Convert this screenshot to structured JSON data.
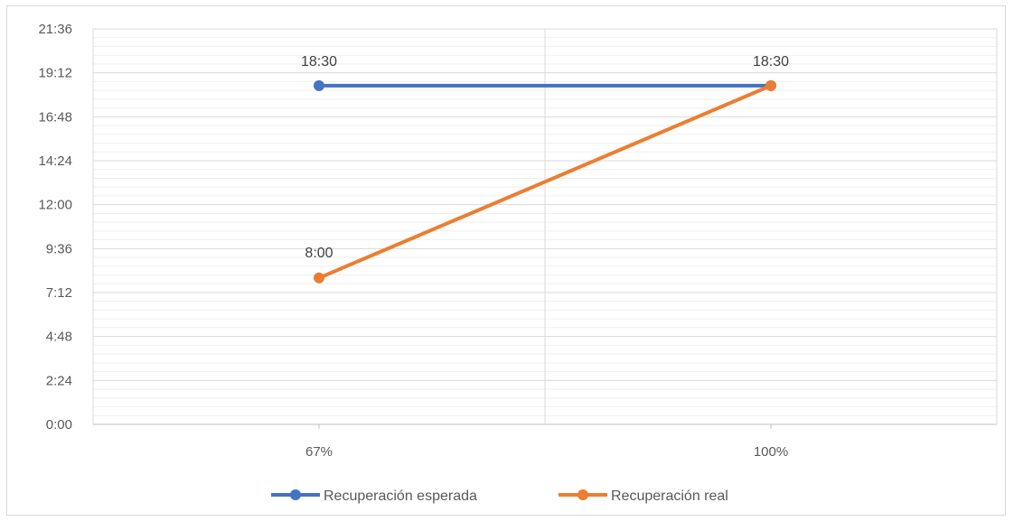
{
  "chart_data": {
    "type": "line",
    "categories": [
      "67%",
      "100%"
    ],
    "y_ticks": [
      "0:00",
      "2:24",
      "4:48",
      "7:12",
      "9:36",
      "12:00",
      "14:24",
      "16:48",
      "19:12",
      "21:36"
    ],
    "ylim_minutes": [
      0,
      1296
    ],
    "grid": true,
    "legend_position": "bottom",
    "series": [
      {
        "name": "Recuperación esperada",
        "color": "#4472C4",
        "values_minutes": [
          1110,
          1110
        ],
        "labels": [
          "18:30",
          ""
        ]
      },
      {
        "name": "Recuperación real",
        "color": "#ED7D31",
        "values_minutes": [
          480,
          1110
        ],
        "labels": [
          "8:00",
          "18:30"
        ]
      }
    ]
  }
}
